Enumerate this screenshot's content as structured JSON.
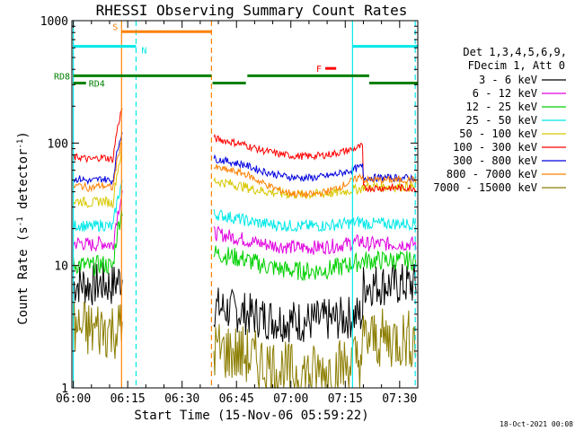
{
  "chart_data": {
    "type": "line",
    "title": "RHESSI Observing Summary Count Rates",
    "xlabel": "Start Time (15-Nov-06 05:59:22)",
    "ylabel_main": "Count Rate (s",
    "ylabel_sup": "-1",
    "ylabel_tail": " detector",
    "ylabel_sup2": "-1",
    "ylabel_end": ")",
    "yscale": "log",
    "ylim": [
      1,
      1000
    ],
    "xlim_minutes": [
      -0.4,
      95
    ],
    "xticks": [
      {
        "label": "06:00",
        "m": 0
      },
      {
        "label": "06:15",
        "m": 15
      },
      {
        "label": "06:30",
        "m": 30
      },
      {
        "label": "06:45",
        "m": 45
      },
      {
        "label": "07:00",
        "m": 60
      },
      {
        "label": "07:15",
        "m": 75
      },
      {
        "label": "07:30",
        "m": 90
      }
    ],
    "yticks": [
      {
        "label": "1",
        "v": 1
      },
      {
        "label": "10",
        "v": 10
      },
      {
        "label": "100",
        "v": 100
      },
      {
        "label": "1000",
        "v": 1000
      }
    ],
    "legend_header": [
      "Det 1,3,4,5,6,9,",
      "FDecim 1, Att 0"
    ],
    "series": [
      {
        "name": "3 - 6 keV",
        "color": "#000000",
        "pre": 7,
        "peak": 8,
        "post": 4,
        "mid": 3.5,
        "end": 7,
        "noise": 0.18
      },
      {
        "name": "6 - 12 keV",
        "color": "#e000e0",
        "pre": 15,
        "peak": 40,
        "post": 16,
        "mid": 14,
        "end": 15,
        "noise": 0.06
      },
      {
        "name": "12 - 25 keV",
        "color": "#00d000",
        "pre": 10,
        "peak": 30,
        "post": 11,
        "mid": 9,
        "end": 11,
        "noise": 0.08
      },
      {
        "name": "25 - 50 keV",
        "color": "#00e8e8",
        "pre": 21,
        "peak": 50,
        "post": 23,
        "mid": 21,
        "end": 22,
        "noise": 0.05
      },
      {
        "name": "50 - 100 keV",
        "color": "#d8c800",
        "pre": 33,
        "peak": 90,
        "post": 43,
        "mid": 38,
        "end": 44,
        "noise": 0.04
      },
      {
        "name": "100 - 300 keV",
        "color": "#ff0000",
        "pre": 75,
        "peak": 200,
        "post": 95,
        "mid": 78,
        "end": 43,
        "noise": 0.03
      },
      {
        "name": "300 - 800 keV",
        "color": "#0000e0",
        "pre": 50,
        "peak": 130,
        "post": 65,
        "mid": 52,
        "end": 52,
        "noise": 0.03
      },
      {
        "name": "800 - 7000 keV",
        "color": "#ff8000",
        "pre": 44,
        "peak": 110,
        "post": 55,
        "mid": 38,
        "end": 50,
        "noise": 0.03
      },
      {
        "name": "7000 - 15000 keV",
        "color": "#8b7d00",
        "pre": 3,
        "peak": 3,
        "post": 1.8,
        "mid": 1.3,
        "end": 2.5,
        "noise": 0.25
      }
    ],
    "flags": [
      {
        "label": "S",
        "color": "#ff8000",
        "start": 13.3,
        "end": 38.1,
        "level": 0.97
      },
      {
        "label": "N",
        "color": "#00e8e8",
        "start": 0,
        "end": 17.3,
        "level": 0.93
      },
      {
        "label": "",
        "color": "#00e8e8",
        "start": 77,
        "end": 95,
        "level": 0.93
      },
      {
        "label": "F",
        "color": "#ff0000",
        "start": 69.5,
        "end": 72.5,
        "level": 0.87
      },
      {
        "label": "RD8",
        "color": "#008000",
        "start": 0,
        "end": 38.1,
        "level": 0.85
      },
      {
        "label": "",
        "color": "#008000",
        "start": 38.4,
        "end": 47.6,
        "level": 0.83
      },
      {
        "label": "",
        "color": "#008000",
        "start": 48,
        "end": 81.6,
        "level": 0.85
      },
      {
        "label": "RD4",
        "color": "#008000",
        "start": 0,
        "end": 3.5,
        "level": 0.83
      },
      {
        "label": "",
        "color": "#008000",
        "start": 81.6,
        "end": 95,
        "level": 0.83
      }
    ],
    "vlines": [
      {
        "m": 13.3,
        "color": "#ff8000",
        "style": "solid"
      },
      {
        "m": 38.1,
        "color": "#ff8000",
        "style": "dash"
      },
      {
        "m": 17.3,
        "color": "#00e8e8",
        "style": "dash"
      },
      {
        "m": 0,
        "color": "#00e8e8",
        "style": "solid"
      },
      {
        "m": 77,
        "color": "#00e8e8",
        "style": "solid"
      },
      {
        "m": 94.3,
        "color": "#00e8e8",
        "style": "dash"
      }
    ],
    "footer_date": "18-Oct-2021 00:08"
  }
}
